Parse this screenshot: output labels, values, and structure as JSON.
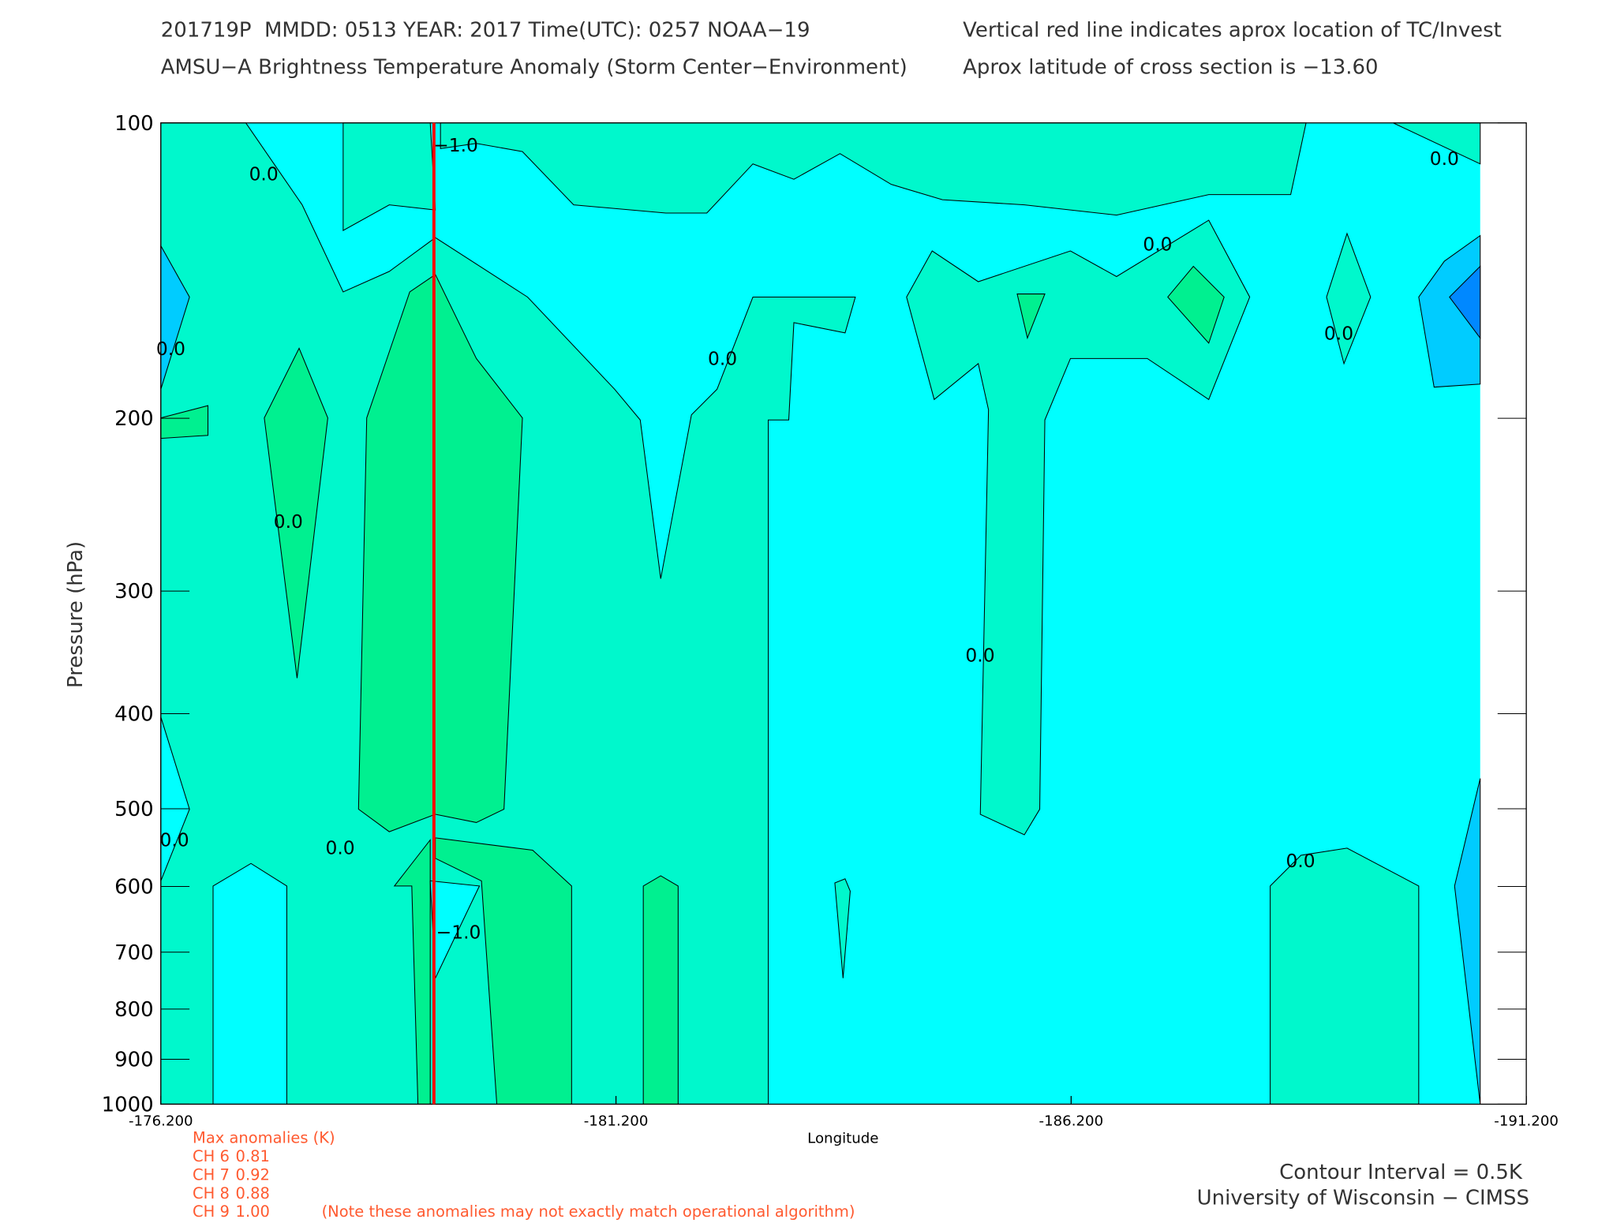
{
  "chart_data": {
    "type": "contour",
    "title": "201719P  MMDD: 0513 YEAR: 2017 Time(UTC): 0257 NOAA−19",
    "subtitle": "AMSU−A Brightness Temperature Anomaly (Storm Center−Environment)",
    "notes": [
      "Vertical red line indicates aprox location of TC/Invest",
      "Aprox latitude of cross section is −13.60"
    ],
    "xlabel": "Longitude",
    "ylabel": "Pressure (hPa)",
    "xlim": [
      -176.2,
      -191.2
    ],
    "xticks": [
      {
        "value": -176.2,
        "label": "-176.200"
      },
      {
        "value": -181.2,
        "label": "-181.200"
      },
      {
        "value": -186.2,
        "label": "-186.200"
      },
      {
        "value": -191.2,
        "label": "-191.200"
      }
    ],
    "ylim": [
      1000,
      100
    ],
    "yticks": [
      100,
      200,
      300,
      400,
      500,
      600,
      700,
      800,
      900,
      1000
    ],
    "log_y": true,
    "tc_longitude": -179.2,
    "tc_line_color": "#ff0000",
    "contour_labels": [
      {
        "value": 0,
        "label": "0.0",
        "lon": -177.33,
        "pressure": 112.8
      },
      {
        "value": -1,
        "label": "−1.0",
        "lon": -179.44,
        "pressure": 105.4
      },
      {
        "value": 0,
        "label": "0.0",
        "lon": -187.15,
        "pressure": 133
      },
      {
        "value": 0,
        "label": "0.0",
        "lon": -182.37,
        "pressure": 174
      },
      {
        "value": 0,
        "label": "0.0",
        "lon": -177.6,
        "pressure": 255
      },
      {
        "value": 0,
        "label": "0.0",
        "lon": -185.2,
        "pressure": 349
      },
      {
        "value": 0,
        "label": "0.0",
        "lon": -178.17,
        "pressure": 548
      },
      {
        "value": 0,
        "label": "0.0",
        "lon": -188.72,
        "pressure": 565
      },
      {
        "value": -1,
        "label": "−1.0",
        "lon": -179.47,
        "pressure": 668
      },
      {
        "value": 0,
        "label": "0.0",
        "lon": -190.3,
        "pressure": 108.8
      },
      {
        "value": 0,
        "label": "0.0",
        "lon": -176.31,
        "pressure": 170
      },
      {
        "value": 0,
        "label": "0.0",
        "lon": -189.14,
        "pressure": 164
      },
      {
        "value": 0,
        "label": "0.0",
        "lon": -176.35,
        "pressure": 538
      }
    ],
    "max_anomalies": {
      "title": "Max anomalies (K)",
      "channels": [
        {
          "label": "CH 6",
          "value": 0.81
        },
        {
          "label": "CH 7",
          "value": 0.92
        },
        {
          "label": "CH 8",
          "value": 0.88
        },
        {
          "label": "CH 9",
          "value": 1.0
        }
      ],
      "note": "(Note these anomalies may not exactly match operational algorithm)"
    },
    "contour_interval": "Contour Interval = 0.5K",
    "credit": "University of Wisconsin − CIMSS"
  }
}
